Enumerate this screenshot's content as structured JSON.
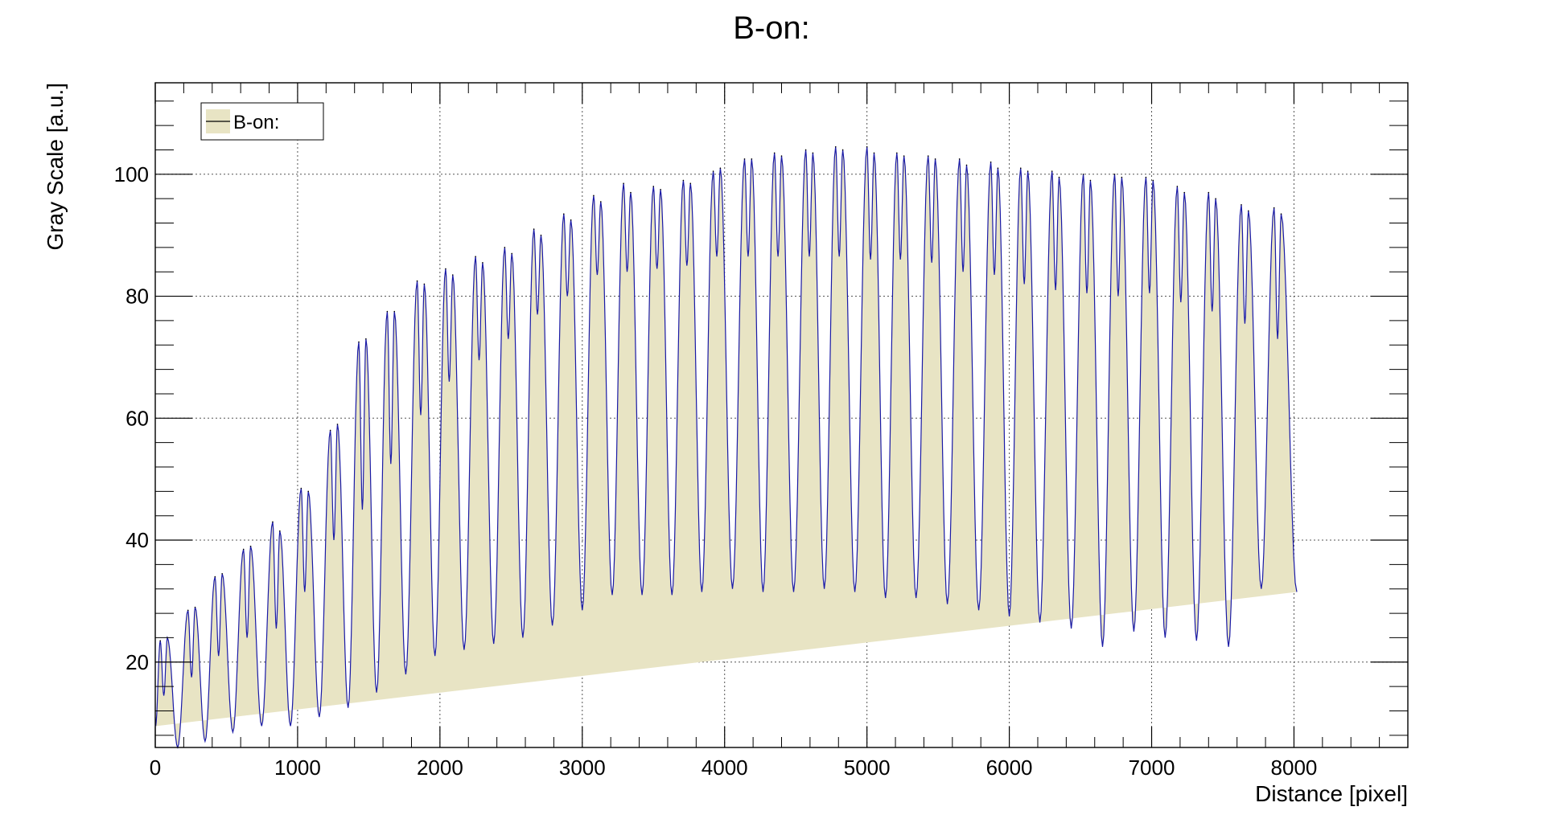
{
  "chart_data": {
    "type": "area",
    "title": "B-on:",
    "xlabel": "Distance [pixel]",
    "ylabel": "Gray Scale [a.u.]",
    "xlim": [
      0,
      8800
    ],
    "ylim": [
      6,
      115
    ],
    "x_ticks": [
      0,
      1000,
      2000,
      3000,
      4000,
      5000,
      6000,
      7000,
      8000
    ],
    "y_ticks": [
      20,
      40,
      60,
      80,
      100
    ],
    "grid": true,
    "legend": {
      "position": "top-left",
      "entries": [
        "B-on:"
      ]
    },
    "colors": {
      "fill": "#e8e4c4",
      "line": "#1a1aa6",
      "frame": "#000000",
      "grid": "#555555"
    },
    "series": [
      {
        "name": "B-on:",
        "x_end": 8020,
        "y_start": 9.5,
        "y_end": 31.5,
        "baseline_start": 9.5,
        "baseline_end": 31.5,
        "peaks": [
          {
            "x1": 35,
            "x2": 85,
            "peak1": 23.5,
            "peak2": 24.0,
            "dip": 14.5,
            "min": 6.0
          },
          {
            "x1": 230,
            "x2": 280,
            "peak1": 28.5,
            "peak2": 29.0,
            "dip": 17.5,
            "min": 7.0
          },
          {
            "x1": 420,
            "x2": 470,
            "peak1": 34.0,
            "peak2": 34.5,
            "dip": 21.0,
            "min": 8.5
          },
          {
            "x1": 620,
            "x2": 670,
            "peak1": 38.5,
            "peak2": 39.0,
            "dip": 24.0,
            "min": 9.5
          },
          {
            "x1": 825,
            "x2": 875,
            "peak1": 43.0,
            "peak2": 41.5,
            "dip": 25.5,
            "min": 9.5
          },
          {
            "x1": 1025,
            "x2": 1075,
            "peak1": 48.5,
            "peak2": 48.0,
            "dip": 31.5,
            "min": 11.0
          },
          {
            "x1": 1230,
            "x2": 1280,
            "peak1": 58.0,
            "peak2": 59.0,
            "dip": 40.0,
            "min": 12.5
          },
          {
            "x1": 1430,
            "x2": 1480,
            "peak1": 72.5,
            "peak2": 73.0,
            "dip": 45.0,
            "min": 15.0
          },
          {
            "x1": 1630,
            "x2": 1680,
            "peak1": 77.5,
            "peak2": 77.5,
            "dip": 52.5,
            "min": 18.0
          },
          {
            "x1": 1840,
            "x2": 1890,
            "peak1": 82.5,
            "peak2": 82.0,
            "dip": 60.5,
            "min": 21.0
          },
          {
            "x1": 2040,
            "x2": 2090,
            "peak1": 84.5,
            "peak2": 83.5,
            "dip": 66.0,
            "min": 22.0
          },
          {
            "x1": 2250,
            "x2": 2300,
            "peak1": 86.5,
            "peak2": 85.5,
            "dip": 69.5,
            "min": 23.0
          },
          {
            "x1": 2455,
            "x2": 2505,
            "peak1": 88.0,
            "peak2": 87.0,
            "dip": 73.0,
            "min": 24.0
          },
          {
            "x1": 2660,
            "x2": 2710,
            "peak1": 91.0,
            "peak2": 90.0,
            "dip": 77.0,
            "min": 26.0
          },
          {
            "x1": 2870,
            "x2": 2920,
            "peak1": 93.5,
            "peak2": 92.5,
            "dip": 80.0,
            "min": 28.5
          },
          {
            "x1": 3080,
            "x2": 3130,
            "peak1": 96.5,
            "peak2": 95.5,
            "dip": 83.5,
            "min": 31.0
          },
          {
            "x1": 3290,
            "x2": 3340,
            "peak1": 98.5,
            "peak2": 97.0,
            "dip": 84.0,
            "min": 31.0
          },
          {
            "x1": 3500,
            "x2": 3550,
            "peak1": 98.0,
            "peak2": 97.5,
            "dip": 84.5,
            "min": 31.0
          },
          {
            "x1": 3710,
            "x2": 3760,
            "peak1": 99.0,
            "peak2": 98.5,
            "dip": 85.0,
            "min": 31.5
          },
          {
            "x1": 3920,
            "x2": 3970,
            "peak1": 100.5,
            "peak2": 101.0,
            "dip": 86.5,
            "min": 32.0
          },
          {
            "x1": 4140,
            "x2": 4190,
            "peak1": 102.5,
            "peak2": 102.5,
            "dip": 86.5,
            "min": 31.5
          },
          {
            "x1": 4350,
            "x2": 4400,
            "peak1": 103.5,
            "peak2": 103.0,
            "dip": 86.5,
            "min": 31.5
          },
          {
            "x1": 4570,
            "x2": 4620,
            "peak1": 104.0,
            "peak2": 103.5,
            "dip": 86.5,
            "min": 32.0
          },
          {
            "x1": 4780,
            "x2": 4830,
            "peak1": 104.5,
            "peak2": 104.0,
            "dip": 86.5,
            "min": 31.5
          },
          {
            "x1": 5000,
            "x2": 5050,
            "peak1": 104.5,
            "peak2": 103.5,
            "dip": 86.0,
            "min": 30.5
          },
          {
            "x1": 5210,
            "x2": 5260,
            "peak1": 103.5,
            "peak2": 103.0,
            "dip": 86.0,
            "min": 30.5
          },
          {
            "x1": 5430,
            "x2": 5480,
            "peak1": 103.0,
            "peak2": 102.5,
            "dip": 85.5,
            "min": 29.5
          },
          {
            "x1": 5650,
            "x2": 5700,
            "peak1": 102.5,
            "peak2": 101.5,
            "dip": 84.0,
            "min": 28.5
          },
          {
            "x1": 5870,
            "x2": 5920,
            "peak1": 102.0,
            "peak2": 101.0,
            "dip": 83.5,
            "min": 27.5
          },
          {
            "x1": 6080,
            "x2": 6130,
            "peak1": 101.0,
            "peak2": 100.5,
            "dip": 82.0,
            "min": 26.5
          },
          {
            "x1": 6300,
            "x2": 6350,
            "peak1": 100.5,
            "peak2": 99.5,
            "dip": 81.0,
            "min": 25.5
          },
          {
            "x1": 6520,
            "x2": 6570,
            "peak1": 100.0,
            "peak2": 99.0,
            "dip": 80.5,
            "min": 22.5
          },
          {
            "x1": 6740,
            "x2": 6790,
            "peak1": 100.0,
            "peak2": 99.5,
            "dip": 80.0,
            "min": 25.0
          },
          {
            "x1": 6960,
            "x2": 7010,
            "peak1": 99.5,
            "peak2": 99.0,
            "dip": 80.5,
            "min": 24.0
          },
          {
            "x1": 7180,
            "x2": 7230,
            "peak1": 98.0,
            "peak2": 97.0,
            "dip": 79.0,
            "min": 23.5
          },
          {
            "x1": 7400,
            "x2": 7450,
            "peak1": 97.0,
            "peak2": 96.0,
            "dip": 77.5,
            "min": 22.5
          },
          {
            "x1": 7630,
            "x2": 7680,
            "peak1": 95.0,
            "peak2": 94.0,
            "dip": 75.5,
            "min": 32.0
          },
          {
            "x1": 7860,
            "x2": 7910,
            "peak1": 94.5,
            "peak2": 93.5,
            "dip": 73.0,
            "min": 32.0
          }
        ]
      }
    ]
  }
}
